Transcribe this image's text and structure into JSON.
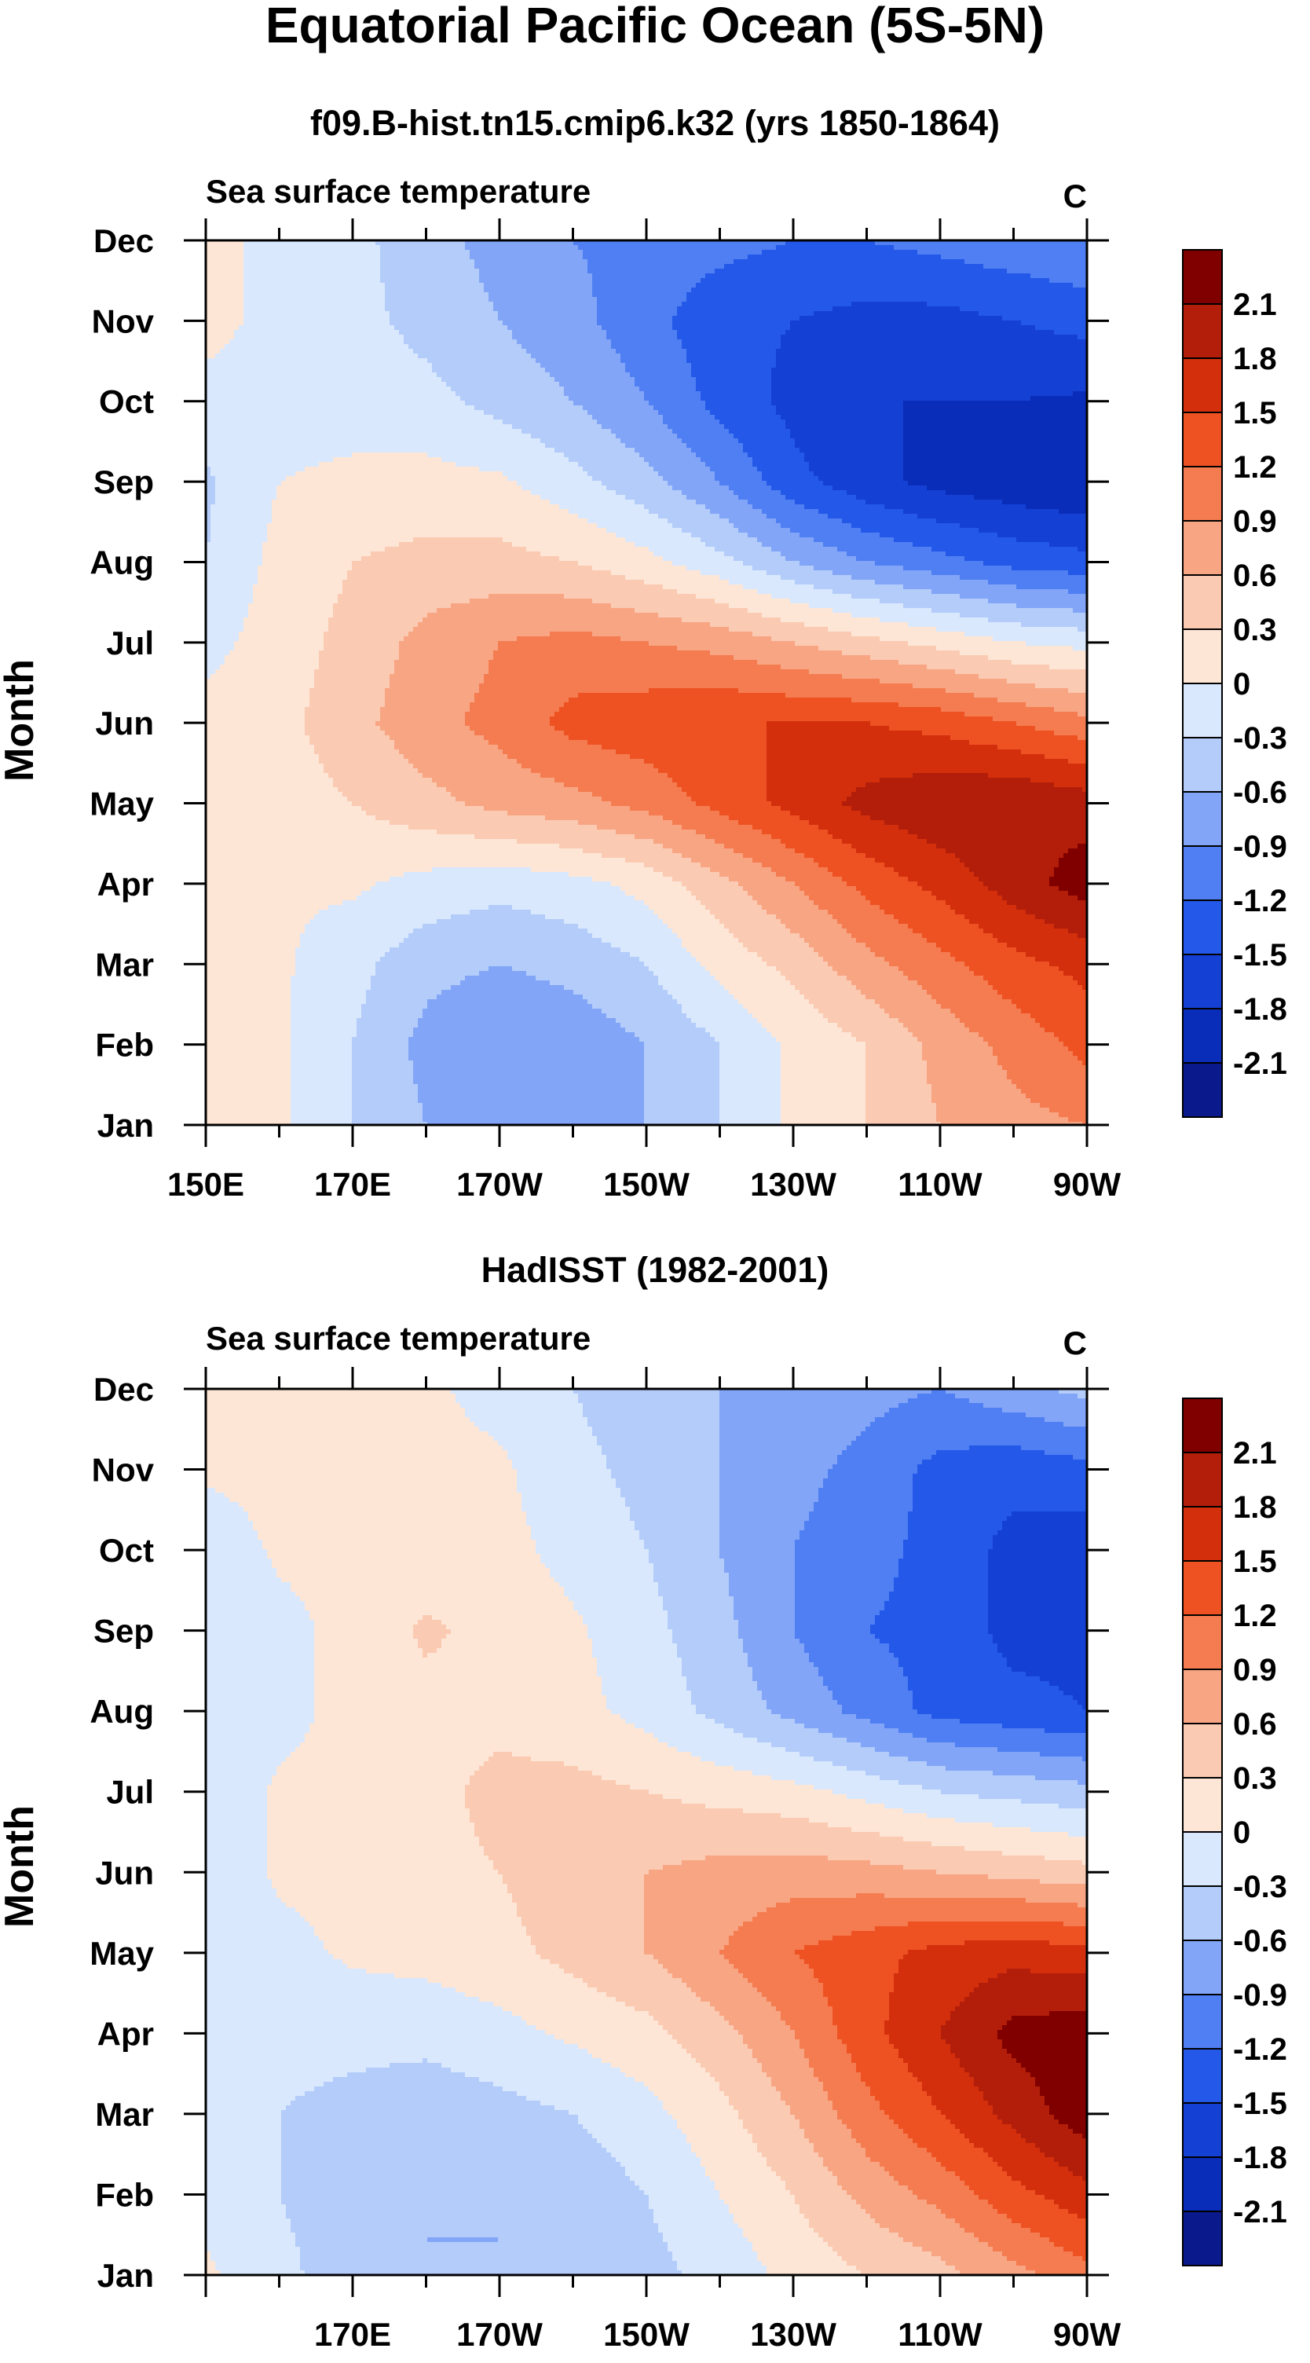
{
  "figure": {
    "title": "Equatorial Pacific Ocean (5S-5N)"
  },
  "palette": {
    "levels": [
      -2.1,
      -1.8,
      -1.5,
      -1.2,
      -0.9,
      -0.6,
      -0.3,
      0,
      0.3,
      0.6,
      0.9,
      1.2,
      1.5,
      1.8,
      2.1
    ],
    "colors": [
      "#0a1a8c",
      "#0a2db9",
      "#1540d4",
      "#2358e8",
      "#4f7ff2",
      "#82a5f7",
      "#b3ccfa",
      "#d9e8fd",
      "#fde6d6",
      "#fbcab2",
      "#f8a584",
      "#f47c50",
      "#ee5223",
      "#d32f0d",
      "#b21e09",
      "#800000"
    ]
  },
  "chart_data": [
    {
      "type": "heatmap",
      "id": "model",
      "title": "f09.B-hist.tn15.cmip6.k32 (yrs 1850-1864)",
      "subtitle": "Sea surface temperature",
      "units": "C",
      "xlabel": "",
      "ylabel": "Month",
      "xlim": [
        150,
        270
      ],
      "x_ticks": [
        {
          "lon": 150,
          "label": "150E"
        },
        {
          "lon": 170,
          "label": "170E"
        },
        {
          "lon": 190,
          "label": "170W"
        },
        {
          "lon": 210,
          "label": "150W"
        },
        {
          "lon": 230,
          "label": "130W"
        },
        {
          "lon": 250,
          "label": "110W"
        },
        {
          "lon": 270,
          "label": "90W"
        }
      ],
      "months": [
        "Jan",
        "Feb",
        "Mar",
        "Apr",
        "May",
        "Jun",
        "Jul",
        "Aug",
        "Sep",
        "Oct",
        "Nov",
        "Dec"
      ],
      "x": [
        150,
        160,
        170,
        180,
        190,
        200,
        210,
        220,
        230,
        240,
        250,
        260,
        270
      ],
      "z": [
        [
          0.1,
          0.05,
          -0.3,
          -0.6,
          -0.9,
          -0.8,
          -0.6,
          -0.3,
          0.05,
          0.3,
          0.6,
          0.8,
          0.9
        ],
        [
          0.1,
          0.05,
          -0.3,
          -0.7,
          -0.9,
          -0.8,
          -0.6,
          -0.3,
          0.05,
          0.3,
          0.7,
          1.0,
          1.3
        ],
        [
          0.1,
          0.05,
          -0.2,
          -0.5,
          -0.6,
          -0.5,
          -0.3,
          0.1,
          0.4,
          0.8,
          1.1,
          1.4,
          1.6
        ],
        [
          0.1,
          0.05,
          0.05,
          -0.1,
          -0.2,
          -0.1,
          0.1,
          0.5,
          0.9,
          1.3,
          1.6,
          1.95,
          2.25
        ],
        [
          0.1,
          0.15,
          0.3,
          0.5,
          0.7,
          0.8,
          1.0,
          1.3,
          1.6,
          1.9,
          2.05,
          2.1,
          1.95
        ],
        [
          0.1,
          0.2,
          0.5,
          0.8,
          1.0,
          1.3,
          1.4,
          1.5,
          1.5,
          1.5,
          1.4,
          1.2,
          1.0
        ],
        [
          -0.1,
          0.15,
          0.4,
          0.7,
          0.9,
          1.0,
          0.9,
          0.8,
          0.6,
          0.4,
          0.2,
          0.0,
          -0.1
        ],
        [
          -0.3,
          0.1,
          0.3,
          0.4,
          0.4,
          0.3,
          0.1,
          -0.2,
          -0.6,
          -0.9,
          -1.1,
          -1.3,
          -1.4
        ],
        [
          -0.35,
          0.0,
          0.05,
          0.1,
          0.05,
          -0.2,
          -0.5,
          -0.9,
          -1.4,
          -1.7,
          -1.9,
          -2.0,
          -2.1
        ],
        [
          -0.1,
          -0.1,
          -0.1,
          -0.2,
          -0.4,
          -0.6,
          -0.9,
          -1.3,
          -1.6,
          -1.8,
          -1.8,
          -1.8,
          -1.85
        ],
        [
          0.1,
          -0.1,
          -0.2,
          -0.4,
          -0.6,
          -0.8,
          -1.1,
          -1.4,
          -1.5,
          -1.6,
          -1.6,
          -1.5,
          -1.4
        ],
        [
          0.1,
          -0.1,
          -0.2,
          -0.5,
          -0.7,
          -0.9,
          -1.0,
          -1.1,
          -1.2,
          -1.2,
          -1.1,
          -1.0,
          -0.9
        ]
      ]
    },
    {
      "type": "heatmap",
      "id": "obs",
      "title": "HadISST (1982-2001)",
      "subtitle": "Sea surface temperature",
      "units": "C",
      "xlabel": "",
      "ylabel": "Month",
      "xlim": [
        150,
        270
      ],
      "x_ticks": [
        {
          "lon": 170,
          "label": "170E"
        },
        {
          "lon": 190,
          "label": "170W"
        },
        {
          "lon": 210,
          "label": "150W"
        },
        {
          "lon": 230,
          "label": "130W"
        },
        {
          "lon": 250,
          "label": "110W"
        },
        {
          "lon": 270,
          "label": "90W"
        }
      ],
      "months": [
        "Jan",
        "Feb",
        "Mar",
        "Apr",
        "May",
        "Jun",
        "Jul",
        "Aug",
        "Sep",
        "Oct",
        "Nov",
        "Dec"
      ],
      "x": [
        150,
        160,
        170,
        180,
        190,
        200,
        210,
        220,
        230,
        240,
        250,
        260,
        270
      ],
      "z": [
        [
          0.05,
          -0.2,
          -0.5,
          -0.6,
          -0.6,
          -0.55,
          -0.4,
          -0.2,
          0.1,
          0.3,
          0.5,
          0.8,
          1.1
        ],
        [
          -0.1,
          -0.3,
          -0.5,
          -0.6,
          -0.6,
          -0.5,
          -0.3,
          0.0,
          0.3,
          0.7,
          1.0,
          1.4,
          1.7
        ],
        [
          -0.2,
          -0.3,
          -0.4,
          -0.5,
          -0.4,
          -0.3,
          -0.1,
          0.2,
          0.6,
          1.1,
          1.5,
          1.9,
          2.3
        ],
        [
          -0.2,
          -0.2,
          -0.2,
          -0.2,
          -0.1,
          0.05,
          0.2,
          0.5,
          0.9,
          1.4,
          1.8,
          2.2,
          2.3
        ],
        [
          -0.2,
          -0.1,
          0.05,
          0.1,
          0.2,
          0.4,
          0.6,
          0.9,
          1.2,
          1.4,
          1.6,
          1.7,
          1.6
        ],
        [
          -0.25,
          0.05,
          0.1,
          0.2,
          0.3,
          0.5,
          0.6,
          0.7,
          0.75,
          0.7,
          0.6,
          0.5,
          0.4
        ],
        [
          -0.25,
          0.05,
          0.1,
          0.2,
          0.4,
          0.4,
          0.3,
          0.2,
          0.1,
          -0.1,
          -0.3,
          -0.4,
          -0.5
        ],
        [
          -0.3,
          -0.1,
          0.1,
          0.2,
          0.2,
          0.1,
          -0.1,
          -0.4,
          -0.7,
          -1.0,
          -1.3,
          -1.4,
          -1.5
        ],
        [
          -0.25,
          -0.1,
          0.1,
          0.35,
          0.2,
          0.05,
          -0.2,
          -0.5,
          -0.9,
          -1.2,
          -1.3,
          -1.6,
          -1.6
        ],
        [
          -0.2,
          0.05,
          0.1,
          0.1,
          0.1,
          -0.1,
          -0.3,
          -0.6,
          -0.9,
          -1.1,
          -1.3,
          -1.6,
          -1.7
        ],
        [
          0.05,
          0.1,
          0.1,
          0.1,
          0.05,
          -0.2,
          -0.4,
          -0.6,
          -0.8,
          -1.0,
          -1.3,
          -1.4,
          -1.3
        ],
        [
          0.1,
          0.1,
          0.1,
          0.05,
          -0.1,
          -0.3,
          -0.5,
          -0.6,
          -0.7,
          -0.8,
          -0.9,
          -0.7,
          -0.5
        ]
      ]
    }
  ]
}
